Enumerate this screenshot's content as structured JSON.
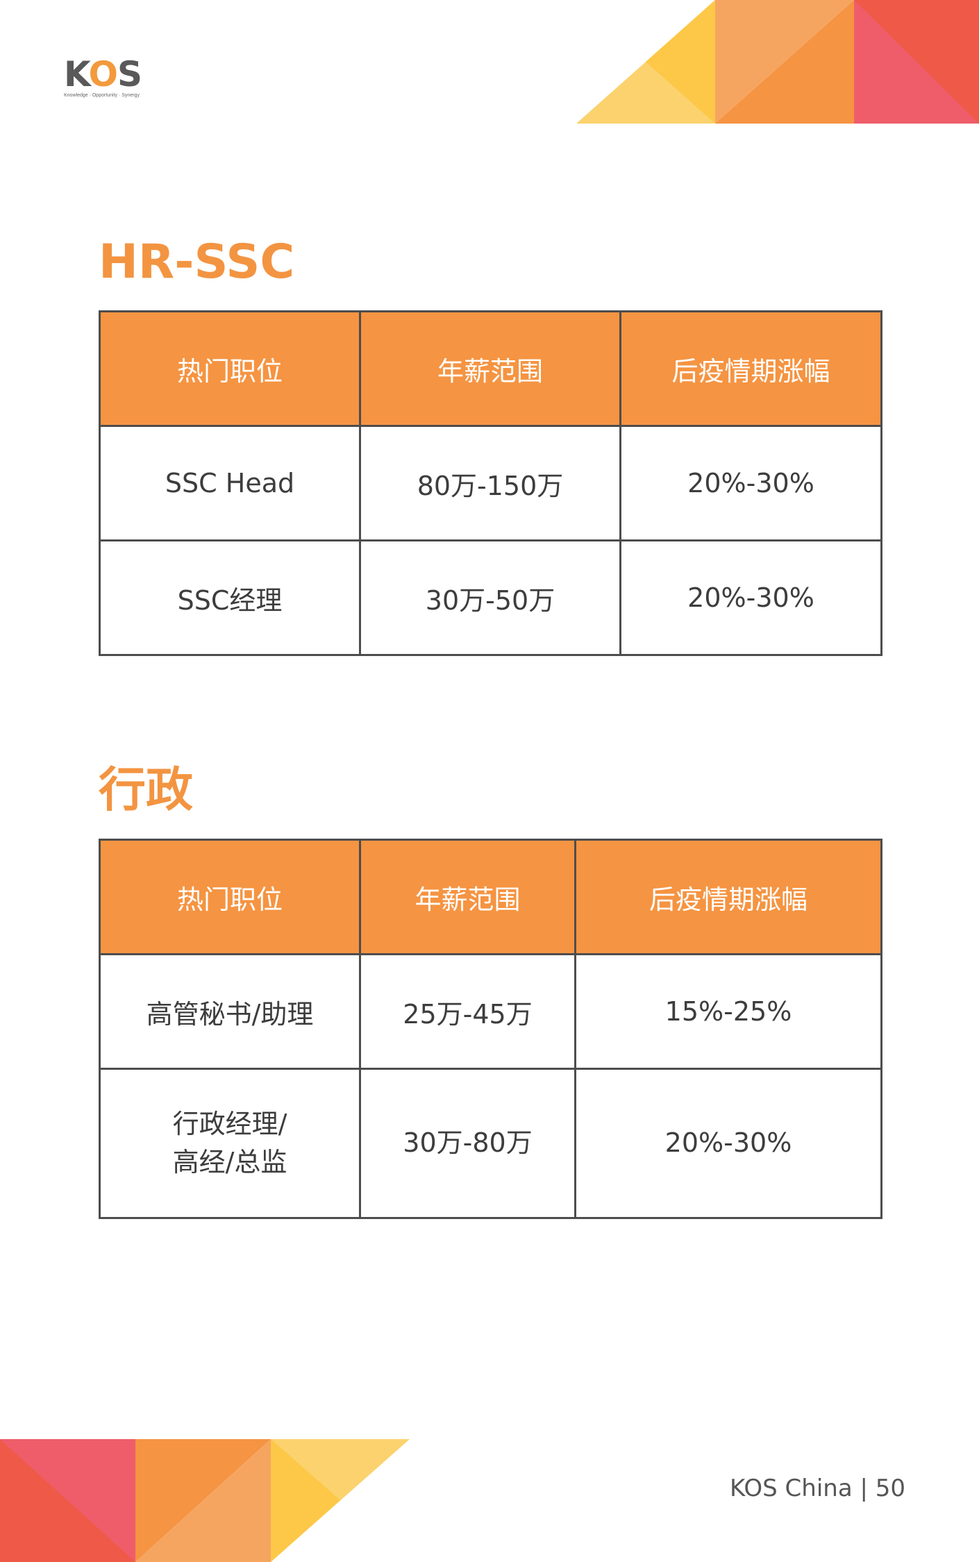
{
  "logo": {
    "text_k": "K",
    "text_o": "O",
    "text_s": "S",
    "tagline": "Knowledge · Opportunity · Synergy"
  },
  "colors": {
    "accent": "#f39441",
    "header_bg": "#f59442",
    "border": "#4d4d4d"
  },
  "sections": [
    {
      "title": "HR-SSC",
      "headers": [
        "热门职位",
        "年薪范围",
        "后疫情期涨幅"
      ],
      "rows": [
        [
          "SSC Head",
          "80万-150万",
          "20%-30%"
        ],
        [
          "SSC经理",
          "30万-50万",
          "20%-30%"
        ]
      ]
    },
    {
      "title": "行政",
      "headers": [
        "热门职位",
        "年薪范围",
        "后疫情期涨幅"
      ],
      "rows": [
        [
          "高管秘书/助理",
          "25万-45万",
          "15%-25%"
        ],
        [
          "行政经理/",
          "30万-80万",
          "20%-30%"
        ]
      ],
      "row2_line2": "高经/总监"
    }
  ],
  "footer": {
    "text": "KOS China | 50"
  }
}
